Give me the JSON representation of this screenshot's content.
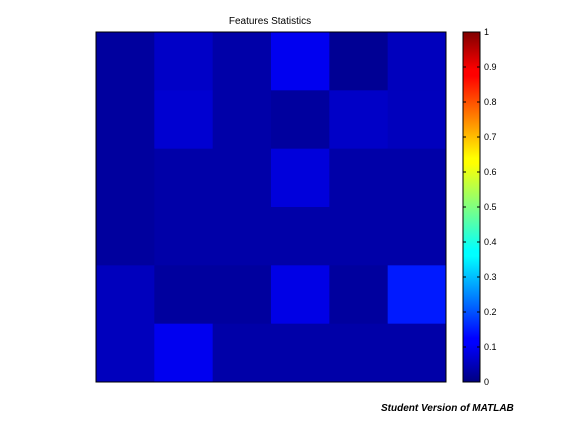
{
  "figure": {
    "watermark": "Student Version of MATLAB"
  },
  "chart_data": {
    "type": "heatmap",
    "title": "Features Statistics",
    "xlabel": "",
    "ylabel": "",
    "rows": 6,
    "cols": 6,
    "values": [
      [
        0.03,
        0.07,
        0.04,
        0.11,
        0.02,
        0.06
      ],
      [
        0.03,
        0.08,
        0.04,
        0.03,
        0.07,
        0.06
      ],
      [
        0.03,
        0.04,
        0.04,
        0.09,
        0.04,
        0.04
      ],
      [
        0.03,
        0.04,
        0.04,
        0.04,
        0.04,
        0.04
      ],
      [
        0.06,
        0.03,
        0.03,
        0.1,
        0.03,
        0.15
      ],
      [
        0.06,
        0.11,
        0.04,
        0.04,
        0.04,
        0.04
      ]
    ],
    "colorbar": {
      "colormap": "jet",
      "range": [
        0,
        1
      ],
      "ticks": [
        "0",
        "0.1",
        "0.2",
        "0.3",
        "0.4",
        "0.5",
        "0.6",
        "0.7",
        "0.8",
        "0.9",
        "1"
      ],
      "tick_values": [
        0,
        0.1,
        0.2,
        0.3,
        0.4,
        0.5,
        0.6,
        0.7,
        0.8,
        0.9,
        1
      ]
    }
  }
}
